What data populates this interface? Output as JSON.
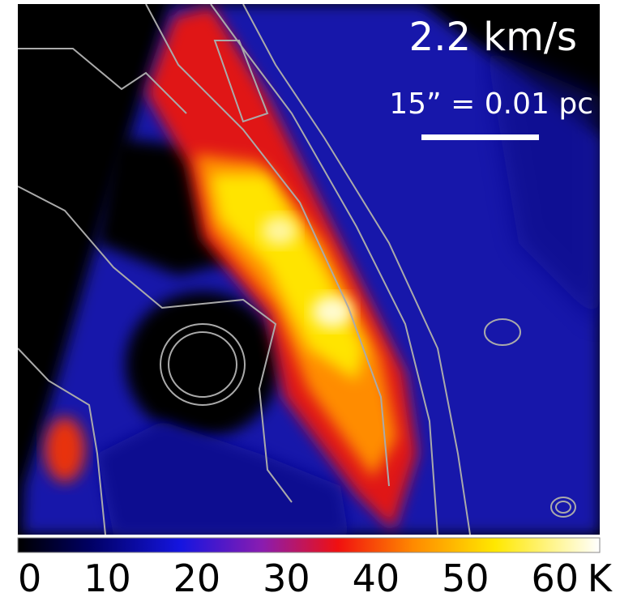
{
  "image": {
    "velocity_label": "2.2 km/s",
    "scale_label": "15” = 0.01 pc"
  },
  "colorbar": {
    "ticks": [
      0,
      10,
      20,
      30,
      40,
      50,
      60
    ],
    "unit": "K",
    "lim": [
      0,
      65
    ]
  }
}
